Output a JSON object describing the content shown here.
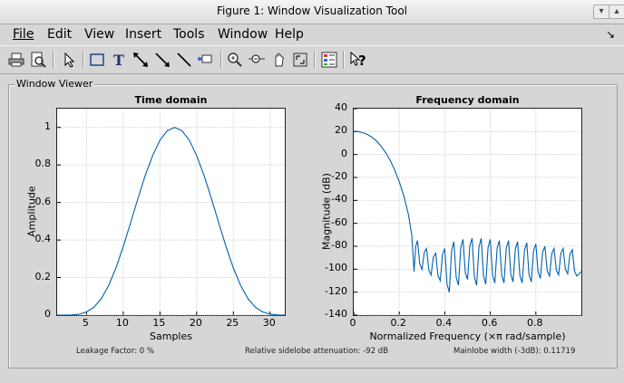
{
  "window": {
    "title": "Figure 1: Window Visualization Tool"
  },
  "menu": [
    "File",
    "Edit",
    "View",
    "Insert",
    "Tools",
    "Window",
    "Help"
  ],
  "menu_mnemonic_index": [
    0,
    0,
    0,
    0,
    0,
    0,
    0
  ],
  "toolbar": [
    "print-icon",
    "print-preview-icon",
    "pointer-icon",
    "rectangle-icon",
    "text-icon",
    "double-arrow-icon",
    "arrow-icon",
    "line-icon",
    "data-cursor-icon",
    "zoom-in-icon",
    "zoom-out-icon",
    "pan-icon",
    "rotate-icon",
    "legend-icon",
    "help-icon"
  ],
  "panel": {
    "title": "Window Viewer"
  },
  "info": {
    "leakage": "Leakage Factor: 0 %",
    "sidelobe": "Relative sidelobe attenuation: -92 dB",
    "mainlobe": "Mainlobe width (-3dB): 0.11719"
  },
  "chart_data": [
    {
      "type": "line",
      "title": "Time domain",
      "xlabel": "Samples",
      "ylabel": "Amplitude",
      "xlim": [
        1,
        32
      ],
      "ylim": [
        0,
        1.1
      ],
      "xticks": [
        "5",
        "10",
        "15",
        "20",
        "25",
        "30"
      ],
      "yticks": [
        "0",
        "0.2",
        "0.4",
        "0.6",
        "0.8",
        "1"
      ],
      "grid": true,
      "color": "#0060b0",
      "series": [
        {
          "x": [
            1,
            2,
            3,
            4,
            5,
            6,
            7,
            8,
            9,
            10,
            11,
            12,
            13,
            14,
            15,
            16,
            17,
            18,
            19,
            20,
            21,
            22,
            23,
            24,
            25,
            26,
            27,
            28,
            29,
            30,
            31,
            32
          ],
          "values": [
            0,
            8e-05,
            0.001,
            0.005,
            0.017,
            0.042,
            0.087,
            0.157,
            0.251,
            0.365,
            0.492,
            0.622,
            0.745,
            0.85,
            0.932,
            0.983,
            1.0,
            0.983,
            0.932,
            0.85,
            0.745,
            0.622,
            0.492,
            0.365,
            0.251,
            0.157,
            0.087,
            0.042,
            0.017,
            0.005,
            0.001,
            8e-05
          ]
        }
      ]
    },
    {
      "type": "line",
      "title": "Frequency domain",
      "xlabel": "Normalized Frequency  (×π rad/sample)",
      "ylabel": "Magnitude (dB)",
      "xlim": [
        0,
        1
      ],
      "ylim": [
        -140,
        40
      ],
      "xticks": [
        "0",
        "0.2",
        "0.4",
        "0.6",
        "0.8"
      ],
      "yticks": [
        "40",
        "20",
        "0",
        "-20",
        "-40",
        "-60",
        "-80",
        "-100",
        "-120",
        "-140"
      ],
      "grid": true,
      "color": "#0060b0",
      "mainlobe": {
        "x": [
          0,
          0.02,
          0.04,
          0.06,
          0.08,
          0.1,
          0.12,
          0.14,
          0.16,
          0.18,
          0.2,
          0.22,
          0.24,
          0.255
        ],
        "values": [
          20.3,
          20.0,
          19.1,
          17.5,
          15.1,
          11.8,
          7.4,
          1.8,
          -5.1,
          -13.5,
          -23.7,
          -36.0,
          -52.0,
          -70.0
        ]
      },
      "sidelobe_peaks": {
        "x": [
          0.28,
          0.32,
          0.36,
          0.4,
          0.44,
          0.48,
          0.52,
          0.56,
          0.6,
          0.64,
          0.68,
          0.72,
          0.76,
          0.8,
          0.84,
          0.88,
          0.92,
          0.96
        ],
        "values": [
          -75,
          -82,
          -86,
          -82,
          -76,
          -74,
          -73,
          -73,
          -74,
          -75,
          -75,
          -76,
          -77,
          -78,
          -80,
          -82,
          -82,
          -83
        ]
      },
      "sidelobe_nulls": {
        "x": [
          0.265,
          0.3,
          0.34,
          0.38,
          0.42,
          0.46,
          0.5,
          0.54,
          0.58,
          0.62,
          0.66,
          0.7,
          0.74,
          0.78,
          0.82,
          0.86,
          0.9,
          0.94,
          0.98
        ],
        "values": [
          -102,
          -100,
          -105,
          -110,
          -120,
          -114,
          -109,
          -114,
          -113,
          -112,
          -112,
          -111,
          -112,
          -111,
          -108,
          -106,
          -105,
          -104,
          -106
        ]
      },
      "end_value": -102
    }
  ]
}
